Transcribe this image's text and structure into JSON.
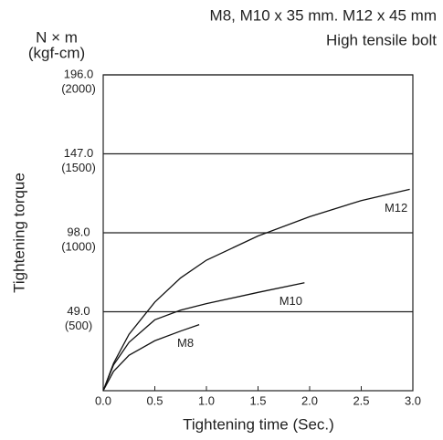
{
  "chart_data": {
    "type": "line",
    "title": "M8, M10 x 35 mm. M12 x 45 mm",
    "subtitle": "High tensile bolt",
    "y_unit": "N × m",
    "y_unit_alt": "(kgf-cm)",
    "ylabel": "Tightening torque",
    "xlabel": "Tightening time (Sec.)",
    "xlim": [
      0,
      3
    ],
    "xticks": [
      {
        "value": 0,
        "label": "0.0"
      },
      0.5,
      {
        "value": 1,
        "label": "1.0"
      },
      1.5,
      {
        "value": 2,
        "label": "2.0"
      },
      2.5,
      {
        "value": 3,
        "label": "3.0"
      }
    ],
    "ylim": [
      0,
      196
    ],
    "yticks": [
      {
        "value": 49,
        "label": "49.0"
      },
      {
        "value": 98,
        "label": "98.0"
      },
      {
        "value": 147,
        "label": "147.0"
      },
      {
        "value": 196,
        "label": "196.0"
      }
    ],
    "yticks_alt": [
      {
        "value": 49,
        "label": "(500)"
      },
      {
        "value": 98,
        "label": "(1000)"
      },
      {
        "value": 147,
        "label": "(1500)"
      },
      {
        "value": 196,
        "label": "(2000)"
      }
    ],
    "grid": true,
    "series": [
      {
        "name": "M8",
        "color": "#111111",
        "x": [
          0,
          0.1,
          0.25,
          0.5,
          0.75,
          0.93
        ],
        "values": [
          0,
          12,
          22,
          31,
          37,
          41
        ]
      },
      {
        "name": "M10",
        "color": "#111111",
        "x": [
          0,
          0.1,
          0.25,
          0.5,
          0.75,
          1.0,
          1.5,
          1.95
        ],
        "values": [
          0,
          16,
          30,
          44,
          50,
          54,
          61,
          67
        ]
      },
      {
        "name": "M12",
        "color": "#111111",
        "x": [
          0,
          0.1,
          0.25,
          0.5,
          0.75,
          1.0,
          1.5,
          2.0,
          2.5,
          2.97
        ],
        "values": [
          0,
          17,
          35,
          55,
          70,
          81,
          96,
          108,
          118,
          125
        ]
      }
    ]
  }
}
